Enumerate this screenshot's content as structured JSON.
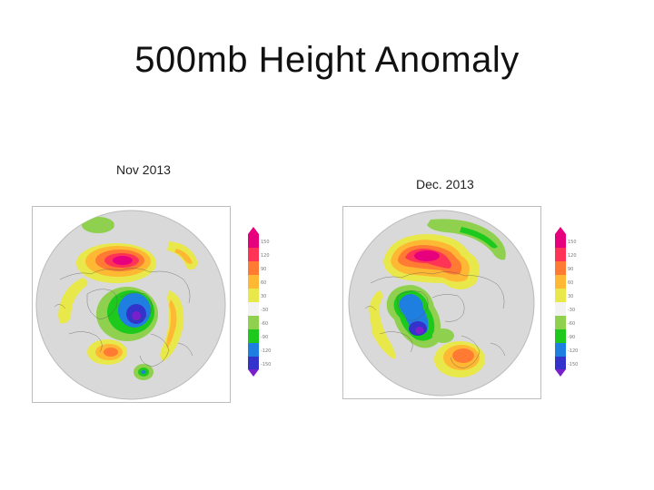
{
  "slide": {
    "title": "500mb Height Anomaly"
  },
  "panels": [
    {
      "label": "Nov 2013"
    },
    {
      "label": "Dec. 2013"
    }
  ],
  "colorbars": [
    {
      "labels": [
        "150",
        "120",
        "90",
        "60",
        "30",
        "-30",
        "-60",
        "-90",
        "-120",
        "-150"
      ]
    },
    {
      "labels": [
        "150",
        "120",
        "90",
        "60",
        "30",
        "-30",
        "-60",
        "-90",
        "-120",
        "-150"
      ]
    }
  ],
  "colors": {
    "map_background": "#d9d9d9",
    "band_colors": [
      "#e6007e",
      "#ff3355",
      "#ff7a33",
      "#ffb833",
      "#e8e84a",
      "#f2f2f2",
      "#8fd14f",
      "#1ec91e",
      "#1f7fe0",
      "#3333cc",
      "#7a1fcc"
    ]
  }
}
